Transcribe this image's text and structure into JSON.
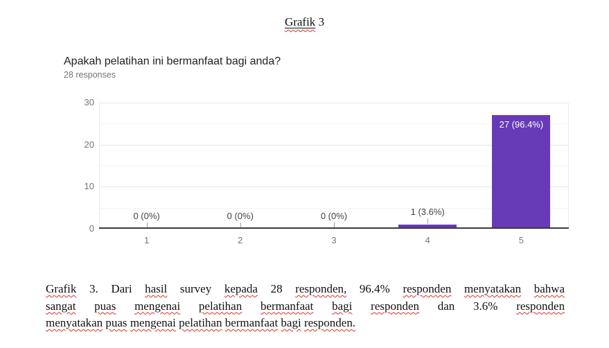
{
  "doc": {
    "title": {
      "word": "Grafik",
      "rest": " 3"
    },
    "squiggle_color": "#d93025",
    "caption_lines": [
      [
        {
          "t": "Grafik",
          "sq": true
        },
        {
          "t": "3.",
          "sq": false
        },
        {
          "t": "Dari",
          "sq": false
        },
        {
          "t": "hasil",
          "sq": true
        },
        {
          "t": "survey",
          "sq": false
        },
        {
          "t": "kepada",
          "sq": true
        },
        {
          "t": "28",
          "sq": false
        },
        {
          "t": "responden,",
          "sq": true
        },
        {
          "t": "96.4%",
          "sq": false
        },
        {
          "t": "responden",
          "sq": true
        },
        {
          "t": "menyatakan",
          "sq": true
        },
        {
          "t": "bahwa",
          "sq": true
        }
      ],
      [
        {
          "t": "sangat",
          "sq": true
        },
        {
          "t": "puas",
          "sq": true
        },
        {
          "t": "mengenai",
          "sq": true
        },
        {
          "t": "pelatihan",
          "sq": true
        },
        {
          "t": "bermanfaat",
          "sq": true
        },
        {
          "t": "bagi",
          "sq": true
        },
        {
          "t": "responden",
          "sq": true
        },
        {
          "t": "dan",
          "sq": false
        },
        {
          "t": "3.6%",
          "sq": false
        },
        {
          "t": "responden",
          "sq": true
        }
      ],
      [
        {
          "t": "menyatakan",
          "sq": true
        },
        {
          "t": "puas",
          "sq": true
        },
        {
          "t": "mengenai",
          "sq": true
        },
        {
          "t": "pelatihan",
          "sq": true
        },
        {
          "t": "bermanfaat",
          "sq": true
        },
        {
          "t": "bagi",
          "sq": true
        },
        {
          "t": "responden.",
          "sq": true
        }
      ]
    ]
  },
  "chart_data": {
    "type": "bar",
    "title": "Apakah pelatihan ini bermanfaat bagi anda?",
    "subtitle": "28 responses",
    "categories": [
      "1",
      "2",
      "3",
      "4",
      "5"
    ],
    "values": [
      0,
      0,
      0,
      1,
      27
    ],
    "bar_labels": [
      "0 (0%)",
      "0 (0%)",
      "0 (0%)",
      "1 (3.6%)",
      "27 (96.4%)"
    ],
    "xlabel": "",
    "ylabel": "",
    "ylim": [
      0,
      30
    ],
    "yticks": [
      0,
      10,
      20,
      30
    ],
    "minor_yticks": [
      5,
      15,
      25
    ],
    "grid": true,
    "legend": "none",
    "bar_color": "#673ab7",
    "axis_label_color": "#757575",
    "bar_label_color": "#424242",
    "bar_label_color_inside": "#ffffff"
  }
}
